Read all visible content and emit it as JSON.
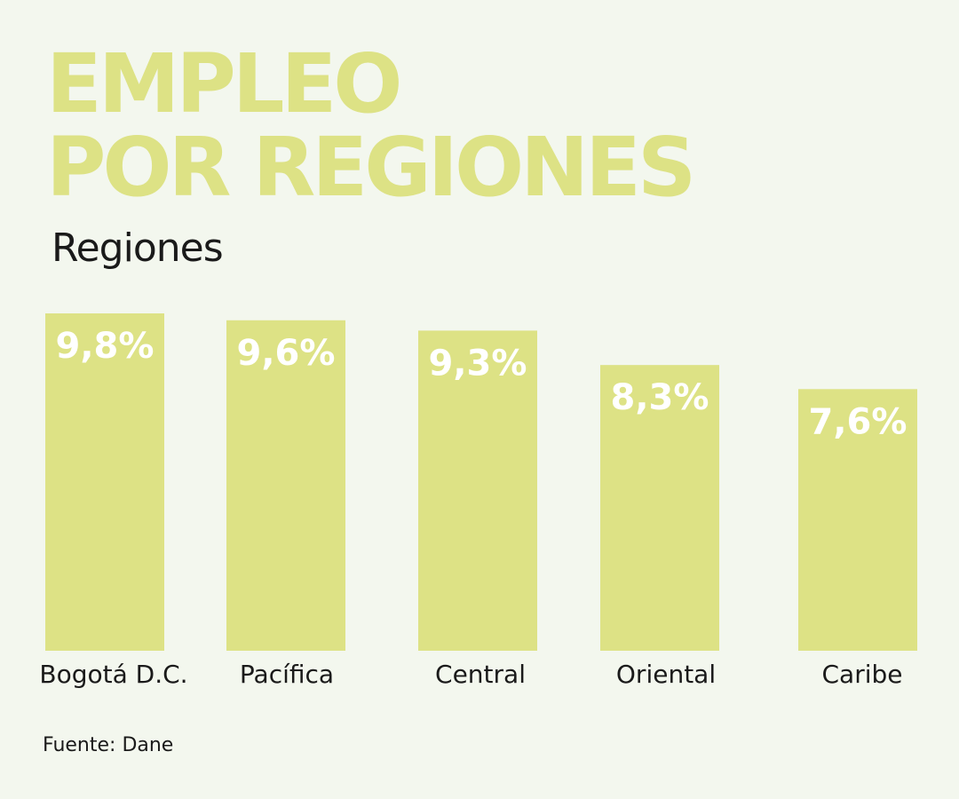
{
  "header": {
    "title_line1": "EMPLEO",
    "title_line2": "POR REGIONES",
    "subtitle": "Regiones"
  },
  "footer": {
    "source": "Fuente: Dane"
  },
  "colors": {
    "background": "#f3f7ee",
    "bar": "#dde285",
    "value_label": "#ffffff",
    "text": "#1a1a1a"
  },
  "chart_data": {
    "type": "bar",
    "title": "EMPLEO POR REGIONES",
    "subtitle": "Regiones",
    "categories": [
      "Bogotá D.C.",
      "Pacífica",
      "Central",
      "Oriental",
      "Caribe"
    ],
    "values": [
      9.8,
      9.6,
      9.3,
      8.3,
      7.6
    ],
    "value_labels": [
      "9,8%",
      "9,6%",
      "9,3%",
      "8,3%",
      "7,6%"
    ],
    "unit": "%",
    "ylim": [
      0,
      9.8
    ],
    "grid": false,
    "legend": "none"
  }
}
